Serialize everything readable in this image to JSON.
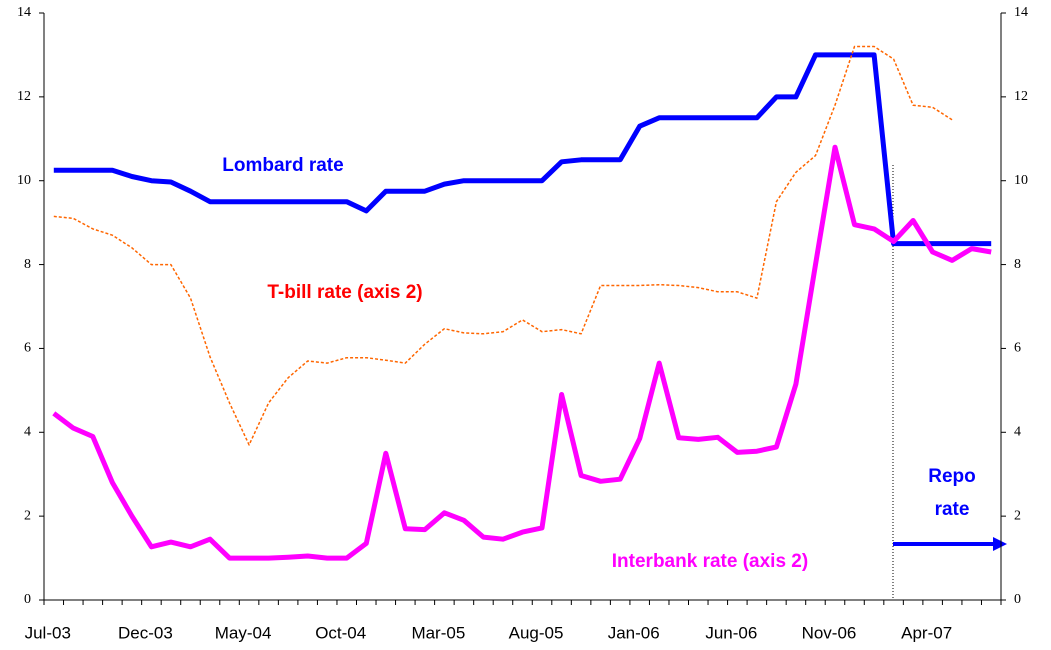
{
  "chart_data": {
    "type": "line",
    "categories": [
      "Jul-03",
      null,
      null,
      null,
      null,
      "Dec-03",
      null,
      null,
      null,
      null,
      "May-04",
      null,
      null,
      null,
      null,
      "Oct-04",
      null,
      null,
      null,
      null,
      "Mar-05",
      null,
      null,
      null,
      null,
      "Aug-05",
      null,
      null,
      null,
      null,
      "Jan-06",
      null,
      null,
      null,
      null,
      "Jun-06",
      null,
      null,
      null,
      null,
      "Nov-06",
      null,
      null,
      null,
      null,
      "Apr-07",
      null,
      null,
      null
    ],
    "ylim": [
      0,
      14
    ],
    "yticks": [
      0,
      2,
      4,
      6,
      8,
      10,
      12,
      14
    ],
    "y2lim": [
      0,
      14
    ],
    "y2ticks": [
      0,
      2,
      4,
      6,
      8,
      10,
      12,
      14
    ],
    "series": [
      {
        "name": "Lombard rate",
        "color": "#0000ff",
        "style": "solid",
        "values": [
          10.25,
          10.25,
          10.25,
          10.25,
          10.1,
          10.0,
          9.97,
          9.75,
          9.5,
          9.5,
          9.5,
          9.5,
          9.5,
          9.5,
          9.5,
          9.5,
          9.28,
          9.75,
          9.75,
          9.75,
          9.92,
          10,
          10,
          10,
          10,
          10,
          10.45,
          10.5,
          10.5,
          10.5,
          11.3,
          11.5,
          11.5,
          11.5,
          11.5,
          11.5,
          11.5,
          12.0,
          12.0,
          13,
          13,
          13,
          13,
          8.5,
          8.5,
          8.5,
          8.5,
          8.5,
          8.5
        ]
      },
      {
        "name": "T-bill rate (axis 2)",
        "color": "#ff6600",
        "style": "dotted",
        "axis": "y2",
        "values": [
          9.15,
          9.1,
          8.85,
          8.7,
          8.4,
          8.0,
          8.0,
          7.2,
          5.8,
          4.7,
          3.7,
          4.7,
          5.3,
          5.7,
          5.65,
          5.78,
          5.78,
          5.72,
          5.65,
          6.1,
          6.47,
          6.37,
          6.35,
          6.4,
          6.68,
          6.4,
          6.45,
          6.35,
          7.5,
          7.5,
          7.5,
          7.52,
          7.5,
          7.45,
          7.35,
          7.35,
          7.2,
          9.5,
          10.2,
          10.6,
          11.8,
          13.2,
          13.2,
          12.9,
          11.8,
          11.75,
          11.45,
          null,
          null
        ]
      },
      {
        "name": "Interbank rate (axis 2)",
        "color": "#ff00ff",
        "style": "solid",
        "axis": "y2",
        "values": [
          4.45,
          4.1,
          3.9,
          2.8,
          2.0,
          1.27,
          1.38,
          1.27,
          1.45,
          1.0,
          1.0,
          1.0,
          1.02,
          1.05,
          1.0,
          1.0,
          1.35,
          3.5,
          1.7,
          1.68,
          2.08,
          1.9,
          1.5,
          1.45,
          1.62,
          1.72,
          4.9,
          2.97,
          2.83,
          2.88,
          3.85,
          5.65,
          3.87,
          3.83,
          3.88,
          3.52,
          3.55,
          3.65,
          5.15,
          8.0,
          10.8,
          8.95,
          8.85,
          8.55,
          9.05,
          8.3,
          8.1,
          8.38,
          8.3
        ]
      }
    ],
    "annotations": [
      "Repo rate"
    ]
  }
}
